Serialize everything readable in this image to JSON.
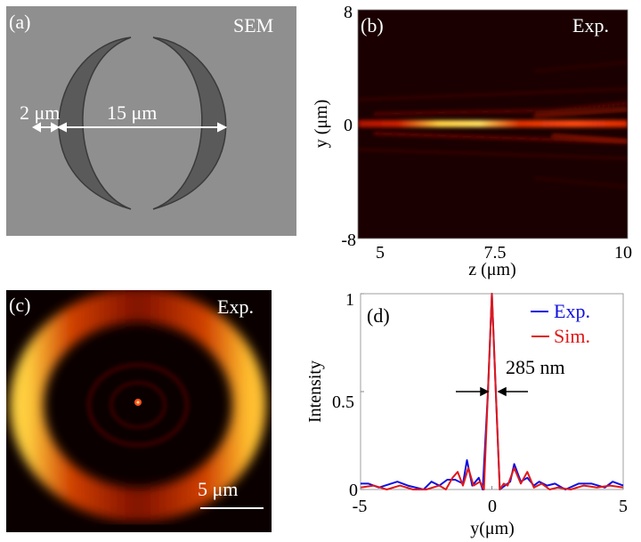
{
  "panel_a": {
    "label": "(a)",
    "tag": "SEM",
    "dim_small": "2 μm",
    "dim_large": "15 μm"
  },
  "panel_b": {
    "label": "(b)",
    "tag": "Exp.",
    "xlabel": "z (μm)",
    "ylabel": "y (μm)",
    "xticks": [
      "5",
      "7.5",
      "10"
    ],
    "yticks": [
      "8",
      "0",
      "-8"
    ],
    "xlim": [
      4.5,
      10
    ],
    "ylim": [
      -8,
      8
    ],
    "colormap": "hot"
  },
  "panel_c": {
    "label": "(c)",
    "tag": "Exp.",
    "scale_bar": "5 μm"
  },
  "chart_data": {
    "type": "line",
    "label": "(d)",
    "xlabel": "y(μm)",
    "ylabel": "Intensity",
    "xlim": [
      -5,
      5
    ],
    "ylim": [
      0,
      1
    ],
    "xticks": [
      "-5",
      "0",
      "5"
    ],
    "yticks": [
      "0",
      "0.5",
      "1"
    ],
    "grid": false,
    "legend": "top-right",
    "annotation": "285 nm",
    "series": [
      {
        "name": "Exp.",
        "color": "#1010e0",
        "x": [
          -5,
          -4.7,
          -4.3,
          -3.6,
          -3.2,
          -2.6,
          -2.3,
          -2,
          -1.7,
          -1.4,
          -1.1,
          -0.95,
          -0.75,
          -0.5,
          -0.35,
          -0.15,
          0,
          0.15,
          0.3,
          0.5,
          0.7,
          0.85,
          1.1,
          1.35,
          1.6,
          1.8,
          2.1,
          2.4,
          2.8,
          3.3,
          3.8,
          4.3,
          4.6,
          5
        ],
        "y": [
          0.03,
          0.03,
          0.01,
          0.04,
          0.02,
          0.0,
          0.04,
          0.02,
          0.05,
          0.05,
          0.03,
          0.15,
          0.02,
          0.06,
          0.0,
          0.5,
          1,
          0.5,
          0.0,
          0.02,
          0.04,
          0.13,
          0.04,
          0.06,
          0.02,
          0.04,
          0.02,
          0.03,
          0.0,
          0.03,
          0.03,
          0.01,
          0.04,
          0.02
        ]
      },
      {
        "name": "Sim.",
        "color": "#e01818",
        "x": [
          -5,
          -4.5,
          -4,
          -3.5,
          -3,
          -2.5,
          -2,
          -1.75,
          -1.5,
          -1.3,
          -1.1,
          -0.9,
          -0.7,
          -0.45,
          -0.3,
          -0.15,
          0,
          0.15,
          0.3,
          0.45,
          0.6,
          0.85,
          1.1,
          1.35,
          1.6,
          1.9,
          2.2,
          2.5,
          3,
          3.5,
          4,
          4.5,
          5
        ],
        "y": [
          0.01,
          0.02,
          0.0,
          0.02,
          0.0,
          0.0,
          0.02,
          0.0,
          0.06,
          0.09,
          0.02,
          0.11,
          0.02,
          0.04,
          0.0,
          0.5,
          1,
          0.5,
          0.0,
          0.03,
          0.02,
          0.11,
          0.03,
          0.09,
          0.01,
          0.03,
          0.0,
          0.01,
          0.0,
          0.02,
          0.01,
          0.02,
          0.01
        ]
      }
    ]
  }
}
